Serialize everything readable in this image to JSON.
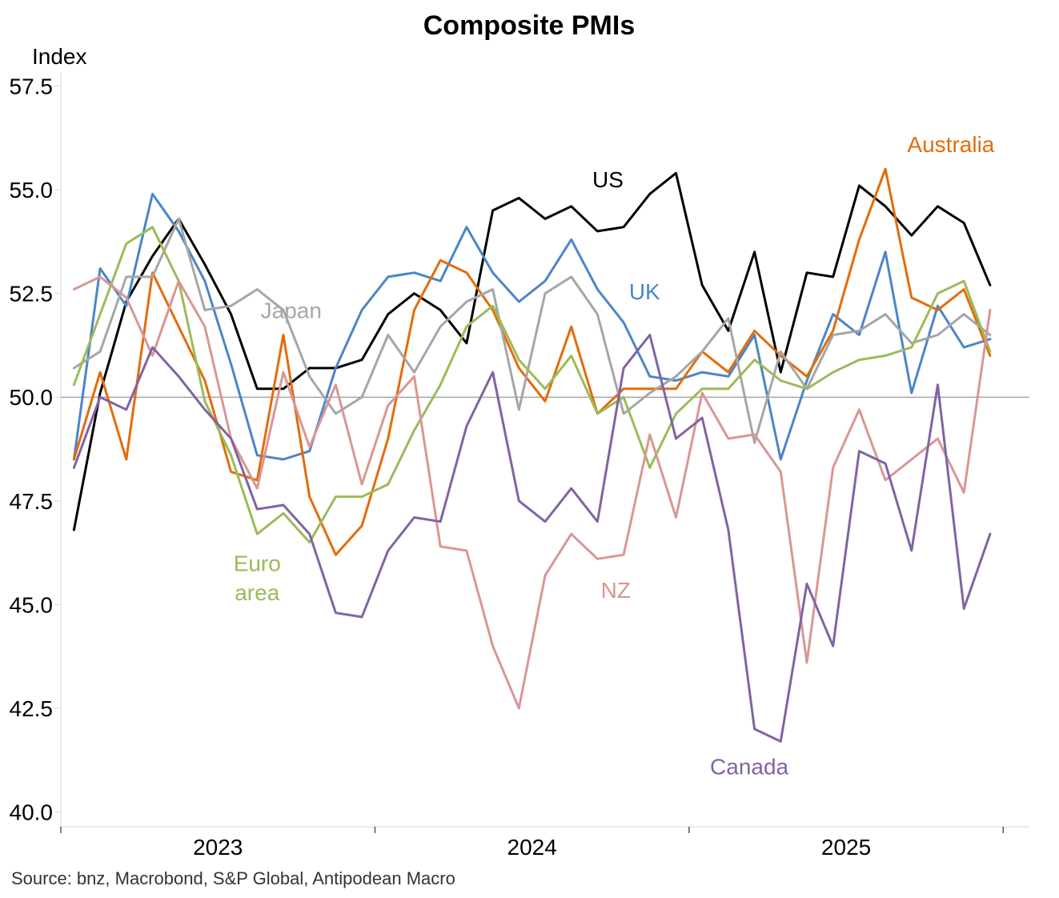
{
  "chart_data": {
    "type": "line",
    "title": "Composite PMIs",
    "ylabel": "Index",
    "xlabel": "",
    "ylim": [
      40,
      58
    ],
    "yticks": [
      40.0,
      42.5,
      45.0,
      47.5,
      50.0,
      52.5,
      55.0,
      57.5
    ],
    "ytick_labels": [
      "40.0",
      "42.5",
      "45.0",
      "47.5",
      "50.0",
      "52.5",
      "55.0",
      "57.5"
    ],
    "xlim": [
      0,
      37
    ],
    "x_tick_positions": [
      0,
      12,
      24,
      36
    ],
    "x_labels": [
      {
        "label": "2023",
        "x": 6
      },
      {
        "label": "2024",
        "x": 18
      },
      {
        "label": "2025",
        "x": 30
      }
    ],
    "reference_line": 50,
    "x": [
      0.5,
      1.5,
      2.5,
      3.5,
      4.5,
      5.5,
      6.5,
      7.5,
      8.5,
      9.5,
      10.5,
      11.5,
      12.5,
      13.5,
      14.5,
      15.5,
      16.5,
      17.5,
      18.5,
      19.5,
      20.5,
      21.5,
      22.5,
      23.5,
      24.5,
      25.5,
      26.5,
      27.5,
      28.5,
      29.5,
      30.5,
      31.5,
      32.5,
      33.5,
      34.5,
      35.5
    ],
    "series": [
      {
        "name": "US",
        "color": "#000000",
        "values": [
          46.8,
          50.1,
          52.3,
          53.4,
          54.3,
          53.2,
          52.0,
          50.2,
          50.2,
          50.7,
          50.7,
          50.9,
          52.0,
          52.5,
          52.1,
          51.3,
          54.5,
          54.8,
          54.3,
          54.6,
          54.0,
          54.1,
          54.9,
          55.4,
          52.7,
          51.6,
          53.5,
          50.6,
          53.0,
          52.9,
          55.1,
          54.6,
          53.9,
          54.6,
          54.2,
          52.7
        ]
      },
      {
        "name": "UK",
        "color": "#4a86c8",
        "values": [
          48.5,
          53.1,
          52.2,
          54.9,
          54.0,
          52.8,
          50.8,
          48.6,
          48.5,
          48.7,
          50.7,
          52.1,
          52.9,
          53.0,
          52.8,
          54.1,
          53.0,
          52.3,
          52.8,
          53.8,
          52.6,
          51.8,
          50.5,
          50.4,
          50.6,
          50.5,
          51.5,
          48.5,
          50.4,
          52.0,
          51.5,
          53.5,
          50.1,
          52.2,
          51.2,
          51.4
        ]
      },
      {
        "name": "Australia",
        "color": "#e36c0a",
        "values": [
          48.5,
          50.6,
          48.5,
          53.0,
          51.7,
          50.4,
          48.2,
          48.0,
          51.5,
          47.6,
          46.2,
          46.9,
          49.0,
          52.1,
          53.3,
          53.0,
          52.1,
          50.7,
          49.9,
          51.7,
          49.6,
          50.2,
          50.2,
          50.2,
          51.1,
          50.6,
          51.6,
          51.0,
          50.5,
          51.6,
          53.8,
          55.5,
          52.4,
          52.1,
          52.6,
          51.0
        ]
      },
      {
        "name": "Japan",
        "color": "#a6a6a6",
        "values": [
          50.7,
          51.1,
          52.9,
          52.9,
          54.3,
          52.1,
          52.2,
          52.6,
          52.1,
          50.5,
          49.6,
          50.0,
          51.5,
          50.6,
          51.7,
          52.3,
          52.6,
          49.7,
          52.5,
          52.9,
          52.0,
          49.6,
          50.1,
          50.5,
          51.1,
          51.9,
          48.9,
          51.1,
          50.2,
          51.5,
          51.6,
          52.0,
          51.3,
          51.5,
          52.0,
          51.5
        ]
      },
      {
        "name": "Euro area",
        "color": "#9bbb59",
        "values": [
          50.3,
          52.0,
          53.7,
          54.1,
          52.8,
          49.9,
          48.6,
          46.7,
          47.2,
          46.5,
          47.6,
          47.6,
          47.9,
          49.2,
          50.3,
          51.7,
          52.2,
          50.9,
          50.2,
          51.0,
          49.6,
          50.0,
          48.3,
          49.6,
          50.2,
          50.2,
          50.9,
          50.4,
          50.2,
          50.6,
          50.9,
          51.0,
          51.2,
          52.5,
          52.8,
          51.1
        ]
      },
      {
        "name": "NZ",
        "color": "#d99694",
        "values": [
          52.6,
          52.9,
          52.4,
          51.0,
          52.8,
          51.7,
          49.0,
          47.8,
          50.6,
          48.8,
          50.3,
          47.9,
          49.8,
          50.5,
          46.4,
          46.3,
          44.0,
          42.5,
          45.7,
          46.7,
          46.1,
          46.2,
          49.1,
          47.1,
          50.1,
          49.0,
          49.1,
          48.2,
          43.6,
          48.3,
          49.7,
          48.0,
          48.5,
          49.0,
          47.7,
          52.1
        ]
      },
      {
        "name": "Canada",
        "color": "#8064a2",
        "values": [
          48.3,
          50.0,
          49.7,
          51.2,
          50.5,
          49.7,
          49.0,
          47.3,
          47.4,
          46.7,
          44.8,
          44.7,
          46.3,
          47.1,
          47.0,
          49.3,
          50.6,
          47.5,
          47.0,
          47.8,
          47.0,
          50.7,
          51.5,
          49.0,
          49.5,
          46.8,
          42.0,
          41.7,
          45.5,
          44.0,
          48.7,
          48.4,
          46.3,
          50.3,
          44.9,
          46.7
        ]
      }
    ],
    "annotations": [
      {
        "text": "US",
        "series": "US",
        "x": 20.9,
        "y": 55.25
      },
      {
        "text": "Australia",
        "series": "Australia",
        "x": 34.0,
        "y": 56.1
      },
      {
        "text": "Japan",
        "series": "Japan",
        "x": 8.8,
        "y": 52.1
      },
      {
        "text": "UK",
        "series": "UK",
        "x": 22.3,
        "y": 52.55
      },
      {
        "text": "Euro",
        "series": "Euro area",
        "x": 7.5,
        "y": 46.0
      },
      {
        "text": "area",
        "series": "Euro area",
        "x": 7.5,
        "y": 45.3
      },
      {
        "text": "NZ",
        "series": "NZ",
        "x": 21.2,
        "y": 45.35
      },
      {
        "text": "Canada",
        "series": "Canada",
        "x": 26.3,
        "y": 41.1
      }
    ],
    "source": "Source: bnz, Macrobond, S&P Global, Antipodean Macro"
  }
}
